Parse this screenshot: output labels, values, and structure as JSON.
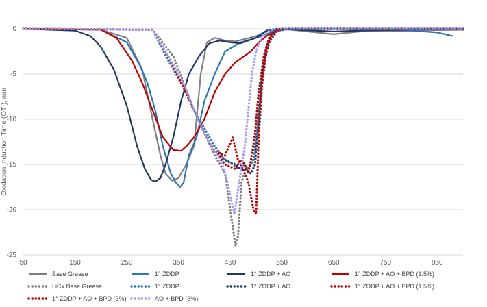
{
  "chart_data": {
    "type": "line",
    "xlabel": "",
    "ylabel": "Oxidation Induction Time (OTI), min",
    "xlim": [
      50,
      900
    ],
    "ylim": [
      -25,
      0
    ],
    "x_ticks": [
      "50",
      "150",
      "250",
      "350",
      "450",
      "550",
      "650",
      "750",
      "850"
    ],
    "y_ticks": [
      "0",
      "-5",
      "-10",
      "-15",
      "-20",
      "-25"
    ],
    "grid": "horizontal",
    "legend_position": "bottom",
    "series": [
      {
        "name": "Base Grease",
        "color": "#7f7f7f",
        "style": "solid",
        "points": [
          [
            50,
            0
          ],
          [
            200,
            -0.1
          ],
          [
            250,
            -1
          ],
          [
            280,
            -4.5
          ],
          [
            300,
            -10
          ],
          [
            315,
            -14
          ],
          [
            325,
            -16
          ],
          [
            338,
            -16.8
          ],
          [
            350,
            -16.5
          ],
          [
            365,
            -15
          ],
          [
            380,
            -13
          ],
          [
            393,
            -5
          ],
          [
            405,
            -1.5
          ],
          [
            420,
            -1
          ],
          [
            440,
            -1.3
          ],
          [
            460,
            -1.4
          ],
          [
            500,
            -0.8
          ],
          [
            520,
            -0.3
          ],
          [
            550,
            0
          ],
          [
            650,
            -0.6
          ],
          [
            700,
            -0.3
          ],
          [
            800,
            -0.2
          ],
          [
            900,
            -0.1
          ]
        ]
      },
      {
        "name": "1° ZDDP",
        "color": "#2e75b6",
        "style": "solid",
        "points": [
          [
            50,
            0
          ],
          [
            200,
            -0.1
          ],
          [
            250,
            -1.5
          ],
          [
            275,
            -4
          ],
          [
            290,
            -6
          ],
          [
            305,
            -9
          ],
          [
            320,
            -13
          ],
          [
            335,
            -16
          ],
          [
            345,
            -17
          ],
          [
            353,
            -17.5
          ],
          [
            360,
            -17
          ],
          [
            370,
            -14
          ],
          [
            385,
            -12
          ],
          [
            400,
            -8
          ],
          [
            420,
            -5
          ],
          [
            440,
            -2.5
          ],
          [
            470,
            -1.5
          ],
          [
            500,
            -1
          ],
          [
            520,
            -0.6
          ],
          [
            540,
            -0.1
          ],
          [
            650,
            0
          ],
          [
            800,
            -0.2
          ],
          [
            850,
            -0.4
          ],
          [
            880,
            -0.8
          ]
        ]
      },
      {
        "name": "1° ZDDP + AO",
        "color": "#1f3864",
        "style": "solid",
        "points": [
          [
            50,
            0
          ],
          [
            150,
            -0.2
          ],
          [
            180,
            -0.8
          ],
          [
            200,
            -2
          ],
          [
            225,
            -4.5
          ],
          [
            250,
            -8.5
          ],
          [
            270,
            -13
          ],
          [
            285,
            -15.5
          ],
          [
            297,
            -16.7
          ],
          [
            305,
            -16.9
          ],
          [
            315,
            -16.5
          ],
          [
            325,
            -15
          ],
          [
            340,
            -12
          ],
          [
            355,
            -8
          ],
          [
            370,
            -5
          ],
          [
            390,
            -3
          ],
          [
            410,
            -1.6
          ],
          [
            430,
            -1.3
          ],
          [
            450,
            -1.5
          ],
          [
            470,
            -1.6
          ],
          [
            500,
            -1
          ],
          [
            520,
            -0.2
          ],
          [
            540,
            0
          ],
          [
            650,
            -0.3
          ],
          [
            700,
            -0.2
          ],
          [
            900,
            0
          ]
        ]
      },
      {
        "name": "1° ZDDP + AO + BPD (1.5%)",
        "color": "#c00000",
        "style": "solid",
        "points": [
          [
            50,
            0
          ],
          [
            200,
            -0.1
          ],
          [
            230,
            -1
          ],
          [
            260,
            -3.5
          ],
          [
            280,
            -6
          ],
          [
            300,
            -9
          ],
          [
            320,
            -12
          ],
          [
            340,
            -13.4
          ],
          [
            355,
            -13.5
          ],
          [
            365,
            -13
          ],
          [
            380,
            -12
          ],
          [
            400,
            -10
          ],
          [
            420,
            -7
          ],
          [
            440,
            -5
          ],
          [
            460,
            -3.7
          ],
          [
            490,
            -2.5
          ],
          [
            505,
            -1.5
          ],
          [
            520,
            -0.8
          ],
          [
            540,
            -0.2
          ],
          [
            560,
            0
          ],
          [
            900,
            0
          ]
        ]
      },
      {
        "name": "LiCx Base Grease",
        "color": "#7f7f7f",
        "style": "dotted",
        "points": [
          [
            50,
            0
          ],
          [
            300,
            -0.1
          ],
          [
            340,
            -3
          ],
          [
            360,
            -6
          ],
          [
            380,
            -9
          ],
          [
            400,
            -11.5
          ],
          [
            420,
            -14
          ],
          [
            440,
            -16
          ],
          [
            450,
            -20
          ],
          [
            455,
            -22
          ],
          [
            460,
            -24
          ],
          [
            465,
            -23
          ],
          [
            472,
            -17
          ],
          [
            480,
            -15.5
          ],
          [
            490,
            -15
          ],
          [
            497,
            -14
          ],
          [
            505,
            -9
          ],
          [
            515,
            -4
          ],
          [
            525,
            -1.5
          ],
          [
            540,
            -0.3
          ],
          [
            560,
            0
          ],
          [
            900,
            -0.1
          ]
        ]
      },
      {
        "name": "1° ZDDP",
        "color": "#2e75b6",
        "style": "dotted",
        "points": [
          [
            50,
            0
          ],
          [
            300,
            -0.1
          ],
          [
            330,
            -3.5
          ],
          [
            360,
            -6.5
          ],
          [
            380,
            -9
          ],
          [
            400,
            -11
          ],
          [
            420,
            -13
          ],
          [
            440,
            -14.5
          ],
          [
            455,
            -15
          ],
          [
            465,
            -15.5
          ],
          [
            475,
            -15
          ],
          [
            485,
            -15.5
          ],
          [
            495,
            -14.5
          ],
          [
            505,
            -7
          ],
          [
            515,
            -3
          ],
          [
            525,
            -1.5
          ],
          [
            540,
            -0.3
          ],
          [
            560,
            0
          ],
          [
            900,
            0
          ]
        ]
      },
      {
        "name": "1° ZDDP + AO",
        "color": "#1f3864",
        "style": "dotted",
        "points": [
          [
            50,
            0
          ],
          [
            300,
            -0.1
          ],
          [
            330,
            -3
          ],
          [
            360,
            -6
          ],
          [
            380,
            -9
          ],
          [
            400,
            -11.5
          ],
          [
            420,
            -13.5
          ],
          [
            440,
            -14.5
          ],
          [
            460,
            -15
          ],
          [
            470,
            -15.5
          ],
          [
            480,
            -15.5
          ],
          [
            490,
            -16
          ],
          [
            498,
            -15
          ],
          [
            505,
            -10
          ],
          [
            512,
            -5
          ],
          [
            520,
            -2
          ],
          [
            530,
            -0.6
          ],
          [
            545,
            0
          ],
          [
            900,
            0
          ]
        ]
      },
      {
        "name": "1° ZDDP + AO + BPD (1.5%)",
        "color": "#c00000",
        "style": "dotted",
        "points": [
          [
            50,
            0
          ],
          [
            300,
            -0.1
          ],
          [
            330,
            -3
          ],
          [
            360,
            -6.5
          ],
          [
            380,
            -9
          ],
          [
            400,
            -11.5
          ],
          [
            420,
            -13.5
          ],
          [
            440,
            -14
          ],
          [
            455,
            -12
          ],
          [
            465,
            -14.5
          ],
          [
            475,
            -15.5
          ],
          [
            485,
            -17
          ],
          [
            495,
            -20
          ],
          [
            500,
            -20.5
          ],
          [
            505,
            -12
          ],
          [
            512,
            -6
          ],
          [
            520,
            -2.5
          ],
          [
            530,
            -0.8
          ],
          [
            545,
            0
          ],
          [
            900,
            0
          ]
        ]
      },
      {
        "name": "1° ZDDP + AO + BPD (3%)",
        "color": "#c00000",
        "style": "dotted",
        "points": [
          [
            50,
            0
          ],
          [
            300,
            -0.1
          ],
          [
            330,
            -3
          ],
          [
            360,
            -6.5
          ],
          [
            380,
            -9
          ],
          [
            400,
            -11.5
          ],
          [
            420,
            -13.5
          ],
          [
            440,
            -15
          ],
          [
            460,
            -15.5
          ],
          [
            470,
            -14.5
          ],
          [
            478,
            -15
          ],
          [
            485,
            -16
          ],
          [
            490,
            -14.5
          ],
          [
            497,
            -12
          ],
          [
            505,
            -7
          ],
          [
            515,
            -3
          ],
          [
            525,
            -1
          ],
          [
            540,
            -0.2
          ],
          [
            560,
            0
          ],
          [
            900,
            0
          ]
        ]
      },
      {
        "name": "AO + BPD (3%)",
        "color": "#9999ee",
        "style": "dotted",
        "points": [
          [
            50,
            0
          ],
          [
            300,
            -0.1
          ],
          [
            330,
            -3
          ],
          [
            360,
            -6
          ],
          [
            380,
            -9
          ],
          [
            400,
            -11.5
          ],
          [
            420,
            -13.5
          ],
          [
            435,
            -15
          ],
          [
            445,
            -17
          ],
          [
            452,
            -19
          ],
          [
            458,
            -20.5
          ],
          [
            462,
            -19
          ],
          [
            470,
            -16
          ],
          [
            478,
            -13
          ],
          [
            485,
            -9
          ],
          [
            492,
            -5
          ],
          [
            500,
            -2.5
          ],
          [
            510,
            -1
          ],
          [
            525,
            -0.2
          ],
          [
            540,
            0
          ],
          [
            900,
            0
          ]
        ]
      }
    ],
    "legend": [
      {
        "label": "Base Grease",
        "series": 0
      },
      {
        "label": "1° ZDDP",
        "series": 1
      },
      {
        "label": "1° ZDDP + AO",
        "series": 2
      },
      {
        "label": "1° ZDDP + AO + BPD (1.5%)",
        "series": 3
      },
      {
        "label": "LiCx Base Grease",
        "series": 4
      },
      {
        "label": "1° ZDDP",
        "series": 5
      },
      {
        "label": "1° ZDDP + AO",
        "series": 6
      },
      {
        "label": "1° ZDDP + AO + BPD (1.5%)",
        "series": 7
      },
      {
        "label": "1° ZDDP + AO + BPD (3%)",
        "series": 8
      },
      {
        "label": "AO + BPD (3%)",
        "series": 9
      }
    ]
  }
}
